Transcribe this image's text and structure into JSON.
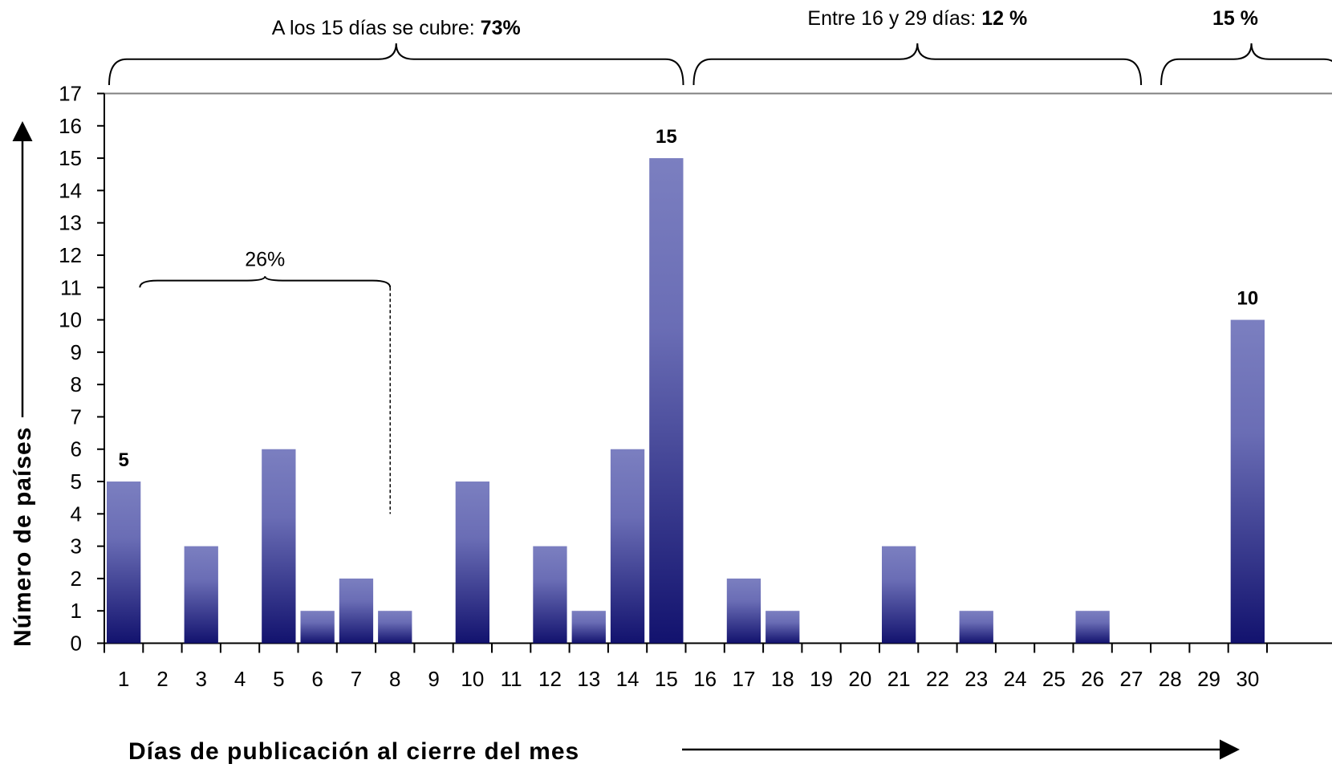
{
  "chart_data": {
    "type": "bar",
    "title": "",
    "xlabel": "Días de publicación al cierre del mes",
    "ylabel": "Número de países",
    "categories": [
      "1",
      "2",
      "3",
      "4",
      "5",
      "6",
      "7",
      "8",
      "9",
      "10",
      "11",
      "12",
      "13",
      "14",
      "15",
      "16",
      "17",
      "18",
      "19",
      "20",
      "21",
      "22",
      "23",
      "24",
      "25",
      "26",
      "27",
      "28",
      "29",
      "30"
    ],
    "values": [
      5,
      0,
      3,
      0,
      6,
      1,
      2,
      1,
      0,
      5,
      0,
      3,
      1,
      6,
      15,
      0,
      2,
      1,
      0,
      0,
      3,
      0,
      1,
      0,
      0,
      1,
      0,
      0,
      0,
      10
    ],
    "ylim": [
      0,
      17
    ],
    "yticks": [
      0,
      1,
      2,
      3,
      4,
      5,
      6,
      7,
      8,
      9,
      10,
      11,
      12,
      13,
      14,
      15,
      16,
      17
    ],
    "grid": false,
    "bar_color_top": "#7b7fc0",
    "bar_color_bottom": "#12126e",
    "data_labels": [
      {
        "category": "1",
        "text": "5"
      },
      {
        "category": "15",
        "text": "15"
      },
      {
        "category": "30",
        "text": "10"
      }
    ],
    "annotations": [
      {
        "from": "1",
        "to": "15",
        "text": "A los 15 días se cubre: ",
        "bold_text": "73%"
      },
      {
        "from": "16",
        "to": "27",
        "text": "Entre 16 y 29 días: ",
        "bold_text": "12 %"
      },
      {
        "from": "28",
        "to": "30",
        "text": "",
        "bold_text": "15 %"
      },
      {
        "from": "1",
        "to": "8",
        "text": "26%",
        "bold_text": "",
        "level": 11,
        "dashed_to": 4
      }
    ]
  }
}
